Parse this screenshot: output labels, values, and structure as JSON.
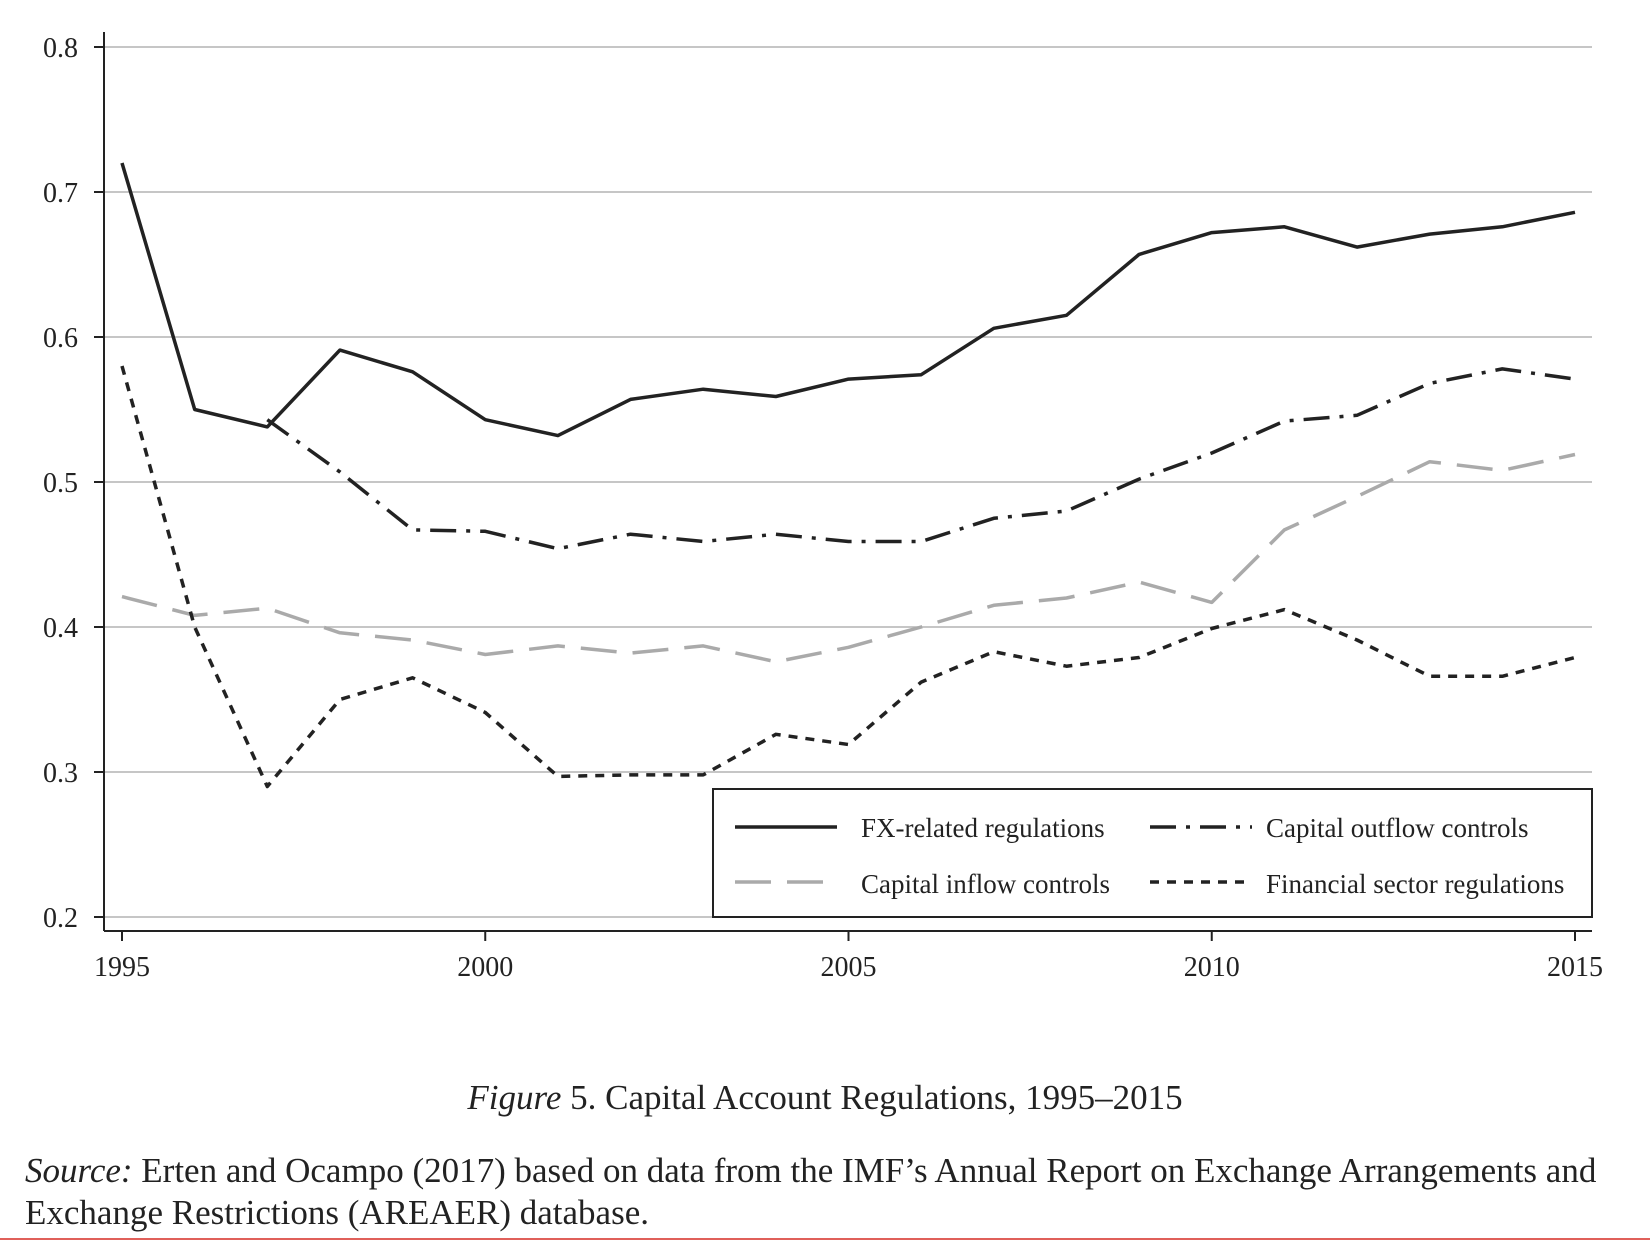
{
  "chart_data": {
    "type": "line",
    "x": [
      1995,
      1996,
      1997,
      1998,
      1999,
      2000,
      2001,
      2002,
      2003,
      2004,
      2005,
      2006,
      2007,
      2008,
      2009,
      2010,
      2011,
      2012,
      2013,
      2014,
      2015
    ],
    "series": [
      {
        "name": "FX-related regulations",
        "color": "#222222",
        "dash": "solid",
        "values": [
          0.72,
          0.55,
          0.538,
          0.591,
          0.576,
          0.543,
          0.532,
          0.557,
          0.564,
          0.559,
          0.571,
          0.574,
          0.606,
          0.615,
          0.657,
          0.672,
          0.676,
          0.662,
          0.671,
          0.676,
          0.686
        ]
      },
      {
        "name": "Capital outflow controls",
        "color": "#222222",
        "dash": "dashdot",
        "values": [
          null,
          null,
          0.543,
          0.507,
          0.467,
          0.466,
          0.454,
          0.464,
          0.459,
          0.464,
          0.459,
          0.459,
          0.475,
          0.48,
          0.502,
          0.52,
          0.542,
          0.546,
          0.568,
          0.578,
          0.571
        ]
      },
      {
        "name": "Capital inflow controls",
        "color": "#aaaaaa",
        "dash": "longdash",
        "values": [
          0.421,
          0.408,
          0.413,
          0.396,
          0.391,
          0.381,
          0.387,
          0.382,
          0.387,
          0.376,
          0.386,
          0.4,
          0.415,
          0.42,
          0.431,
          0.417,
          0.467,
          0.49,
          0.514,
          0.508,
          0.519
        ]
      },
      {
        "name": "Financial sector regulations",
        "color": "#222222",
        "dash": "dotted",
        "values": [
          0.58,
          0.4,
          0.29,
          0.35,
          0.365,
          0.341,
          0.297,
          0.298,
          0.298,
          0.326,
          0.319,
          0.362,
          0.383,
          0.373,
          0.379,
          0.399,
          0.412,
          0.391,
          0.366,
          0.366,
          0.379
        ]
      }
    ],
    "xlim": [
      1995,
      2015
    ],
    "ylim": [
      0.2,
      0.8
    ],
    "xticks": [
      "1995",
      "2000",
      "2005",
      "2010",
      "2015"
    ],
    "yticks": [
      "0.2",
      "0.3",
      "0.4",
      "0.5",
      "0.6",
      "0.7",
      "0.8"
    ],
    "grid": "horizontal",
    "legend_position": "bottom-right"
  },
  "legend": {
    "items": [
      {
        "label": "FX-related regulations"
      },
      {
        "label": "Capital outflow controls"
      },
      {
        "label": "Capital inflow controls"
      },
      {
        "label": "Financial sector regulations"
      }
    ]
  },
  "caption": {
    "figure_word": "Figure",
    "text": " 5. Capital Account Regulations, 1995–2015"
  },
  "source": {
    "label": "Source:",
    "text": " Erten and Ocampo (2017) based on data from the IMF’s Annual Report on Exchange Arrangements and Exchange Restrictions (AREAER) database."
  }
}
